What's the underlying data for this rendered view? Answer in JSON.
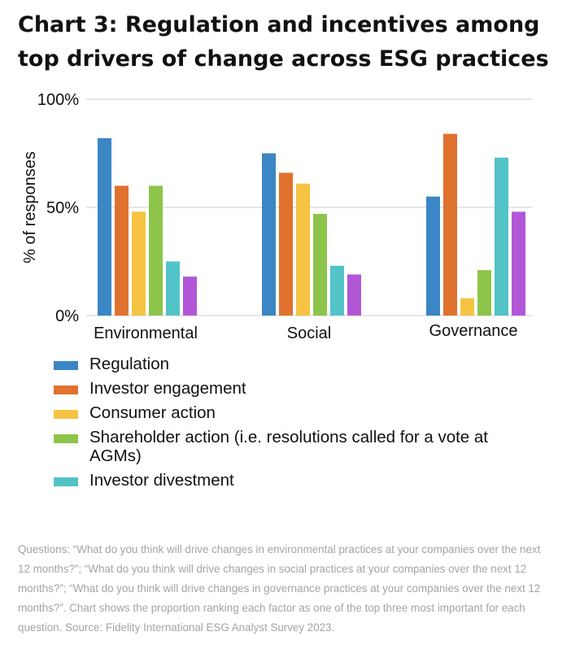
{
  "title": "Chart 3: Regulation and incentives among top drivers of change across ESG practices",
  "footnote": "Questions: “What do you think will drive changes in environmental practices at your companies over the next 12 months?”; “What do you think will drive changes in social practices at your companies over the next 12 months?”; “What do you think will drive changes in governance practices at your companies over the next 12 months?”. Chart shows the proportion ranking each factor as one of the top three most important for each question. Source: Fidelity International ESG Analyst Survey 2023.",
  "chart_data": {
    "type": "bar",
    "ylabel": "% of responses",
    "xlabel": "",
    "ylim": [
      0,
      100
    ],
    "yticks": [
      0,
      50,
      100
    ],
    "ytick_labels": [
      "0%",
      "50%",
      "100%"
    ],
    "grid": true,
    "legend_position": "bottom",
    "categories": [
      "Environmental",
      "Social",
      "Governance"
    ],
    "series": [
      {
        "name": "Regulation",
        "color": "#3b86c4",
        "values": [
          82,
          75,
          55
        ]
      },
      {
        "name": "Investor engagement",
        "color": "#e0712f",
        "values": [
          60,
          66,
          84
        ]
      },
      {
        "name": "Consumer action",
        "color": "#f6c342",
        "values": [
          48,
          61,
          8
        ]
      },
      {
        "name": "Shareholder action (i.e. resolutions called for a vote at AGMs)",
        "color": "#8dc44a",
        "values": [
          60,
          47,
          21
        ]
      },
      {
        "name": "Investor divestment",
        "color": "#52c3c7",
        "values": [
          25,
          23,
          73
        ]
      },
      {
        "name": "",
        "color": "#b157d8",
        "values": [
          18,
          19,
          48
        ]
      }
    ]
  }
}
